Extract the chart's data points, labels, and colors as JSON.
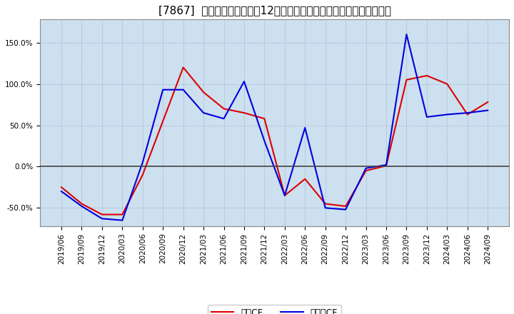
{
  "title": "[7867]  キャッシュフローの12か月移動合計の対前年同期増減率の推移",
  "yticks": [
    -0.5,
    0.0,
    0.5,
    1.0,
    1.5
  ],
  "ylim": [
    -0.72,
    1.78
  ],
  "background_color": "#ffffff",
  "plot_bg_color": "#cce0f0",
  "grid_color": "#9999bb",
  "zero_line_color": "#444444",
  "dates": [
    "2019/06",
    "2019/09",
    "2019/12",
    "2020/03",
    "2020/06",
    "2020/09",
    "2020/12",
    "2021/03",
    "2021/06",
    "2021/09",
    "2021/12",
    "2022/03",
    "2022/06",
    "2022/09",
    "2022/12",
    "2023/03",
    "2023/06",
    "2023/09",
    "2023/12",
    "2024/03",
    "2024/06",
    "2024/09"
  ],
  "operating_cf": [
    -0.25,
    -0.45,
    -0.58,
    -0.58,
    -0.1,
    0.55,
    1.2,
    0.9,
    0.7,
    0.65,
    0.58,
    -0.35,
    -0.15,
    -0.45,
    -0.48,
    -0.05,
    0.01,
    1.05,
    1.1,
    1.0,
    0.63,
    0.78
  ],
  "free_cf": [
    -0.3,
    -0.48,
    -0.63,
    -0.65,
    0.05,
    0.93,
    0.93,
    0.65,
    0.58,
    1.03,
    0.31,
    -0.35,
    0.47,
    -0.5,
    -0.52,
    -0.02,
    0.02,
    1.6,
    0.6,
    0.63,
    0.65,
    0.68
  ],
  "operating_color": "#dd0000",
  "free_color": "#0000dd",
  "legend_label_op": "営業CF",
  "legend_label_fr": "フリーCF",
  "title_fontsize": 11,
  "axis_fontsize": 7.5,
  "legend_fontsize": 9
}
